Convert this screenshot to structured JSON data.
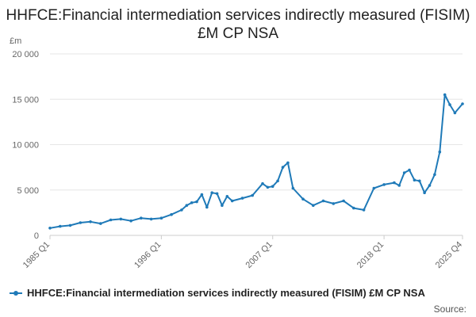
{
  "chart_data": {
    "type": "line",
    "title": "HHFCE:Financial intermediation services indirectly measured (FISIM) £M CP NSA",
    "ylabel": "£m",
    "xlabel": "",
    "ylim": [
      0,
      20000
    ],
    "y_ticks": [
      0,
      5000,
      10000,
      15000,
      20000
    ],
    "y_tick_labels": [
      "0",
      "5 000",
      "10 000",
      "15 000",
      "20 000"
    ],
    "x_ticks": [
      "1985 Q1",
      "1996 Q1",
      "2007 Q1",
      "2018 Q1",
      "2025 Q4"
    ],
    "grid": true,
    "legend_position": "bottom",
    "series_color": "#1f7ab8",
    "series": [
      {
        "name": "HHFCE:Financial intermediation services indirectly measured (FISIM) £M CP NSA",
        "x": [
          "1985 Q1",
          "1986 Q1",
          "1987 Q1",
          "1988 Q1",
          "1989 Q1",
          "1990 Q1",
          "1991 Q1",
          "1992 Q1",
          "1993 Q1",
          "1994 Q1",
          "1995 Q1",
          "1996 Q1",
          "1997 Q1",
          "1998 Q1",
          "1998 Q3",
          "1999 Q1",
          "1999 Q3",
          "2000 Q1",
          "2000 Q3",
          "2001 Q1",
          "2001 Q3",
          "2002 Q1",
          "2002 Q3",
          "2003 Q1",
          "2004 Q1",
          "2005 Q1",
          "2006 Q1",
          "2006 Q3",
          "2007 Q1",
          "2007 Q3",
          "2008 Q1",
          "2008 Q3",
          "2009 Q1",
          "2010 Q1",
          "2011 Q1",
          "2012 Q1",
          "2013 Q1",
          "2014 Q1",
          "2015 Q1",
          "2016 Q1",
          "2017 Q1",
          "2018 Q1",
          "2019 Q1",
          "2019 Q3",
          "2020 Q1",
          "2020 Q3",
          "2021 Q1",
          "2021 Q3",
          "2022 Q1",
          "2022 Q3",
          "2023 Q1",
          "2023 Q3",
          "2024 Q1",
          "2024 Q3",
          "2025 Q1",
          "2025 Q4"
        ],
        "values": [
          800,
          1000,
          1100,
          1400,
          1500,
          1300,
          1700,
          1800,
          1600,
          1900,
          1800,
          1900,
          2300,
          2800,
          3300,
          3600,
          3700,
          4500,
          3100,
          4700,
          4600,
          3300,
          4300,
          3800,
          4100,
          4400,
          5700,
          5300,
          5400,
          6000,
          7500,
          8000,
          5200,
          4000,
          3300,
          3800,
          3500,
          3800,
          3000,
          2800,
          5200,
          5600,
          5800,
          5500,
          6900,
          7200,
          6100,
          6000,
          4700,
          5500,
          6700,
          9200,
          15500,
          14400,
          13500,
          14500
        ]
      }
    ]
  },
  "source_label": "Source:"
}
